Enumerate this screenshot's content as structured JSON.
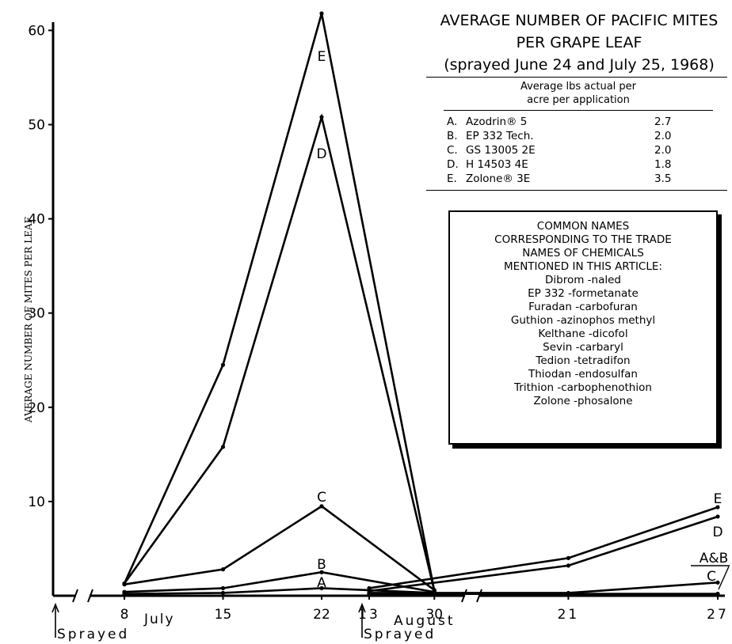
{
  "chart_data": {
    "type": "line",
    "title_lines": [
      "AVERAGE NUMBER OF PACIFIC MITES",
      "PER GRAPE LEAF",
      "(sprayed June 24 and July 25, 1968)"
    ],
    "ylabel": "AVERAGE NUMBER OF MITES PER LEAF",
    "ylim": [
      0,
      62
    ],
    "yticks": [
      10,
      20,
      30,
      40,
      50,
      60
    ],
    "x_segments": [
      {
        "days": [
          8,
          15,
          22,
          30
        ],
        "month_label": "July"
      },
      {
        "days": [
          13,
          21,
          27
        ],
        "month_label": "August"
      }
    ],
    "sprayed_label": "Sprayed",
    "series": [
      {
        "name": "A",
        "july": [
          0.2,
          0.3,
          0.8,
          0.3
        ],
        "august": [
          0.2,
          0.2,
          0.2
        ]
      },
      {
        "name": "B",
        "july": [
          0.4,
          0.8,
          2.5,
          0.4
        ],
        "august": [
          0.2,
          0.2,
          0.2
        ]
      },
      {
        "name": "C",
        "july": [
          1.2,
          2.8,
          9.5,
          0.6
        ],
        "august": [
          0.3,
          0.3,
          1.4
        ]
      },
      {
        "name": "D",
        "july": [
          1.3,
          15.8,
          50.8,
          0.5
        ],
        "august": [
          0.5,
          3.2,
          8.4
        ]
      },
      {
        "name": "E",
        "july": [
          1.3,
          24.5,
          61.8,
          0.5
        ],
        "august": [
          0.8,
          4.0,
          9.4
        ]
      }
    ],
    "point_labels": {
      "A": "A",
      "B": "B",
      "C": "C",
      "D": "D",
      "E": "E",
      "AB": "A&B"
    }
  },
  "table": {
    "header_line1": "Average lbs actual per",
    "header_line2": "acre per application",
    "rows": [
      {
        "letter": "A.",
        "name": "Azodrin® 5",
        "rate": "2.7"
      },
      {
        "letter": "B.",
        "name": "EP 332 Tech.",
        "rate": "2.0"
      },
      {
        "letter": "C.",
        "name": "GS 13005 2E",
        "rate": "2.0"
      },
      {
        "letter": "D.",
        "name": "H 14503 4E",
        "rate": "1.8"
      },
      {
        "letter": "E.",
        "name": "Zolone® 3E",
        "rate": "3.5"
      }
    ]
  },
  "names_box": {
    "heading": [
      "COMMON NAMES",
      "CORRESPONDING TO THE TRADE",
      "NAMES OF CHEMICALS",
      "MENTIONED IN THIS ARTICLE:"
    ],
    "items": [
      "Dibrom -naled",
      "EP 332 -formetanate",
      "Furadan -carbofuran",
      "Guthion -azinophos methyl",
      "Kelthane -dicofol",
      "Sevin -carbaryl",
      "Tedion -tetradifon",
      "Thiodan -endosulfan",
      "Trithion -carbophenothion",
      "Zolone -phosalone"
    ]
  }
}
